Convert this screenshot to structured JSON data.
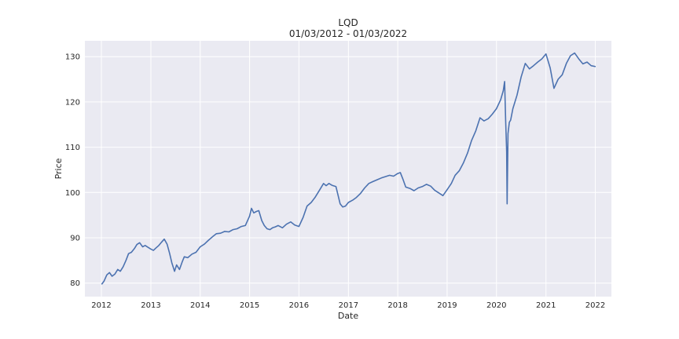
{
  "chart_data": {
    "type": "line",
    "title": "LQD",
    "subtitle": "01/03/2012 - 01/03/2022",
    "xlabel": "Date",
    "ylabel": "Price",
    "x_ticks": [
      "2012",
      "2013",
      "2014",
      "2015",
      "2016",
      "2017",
      "2018",
      "2019",
      "2020",
      "2021",
      "2022"
    ],
    "y_ticks": [
      80,
      90,
      100,
      110,
      120,
      130
    ],
    "xlim": [
      "2011-09-01",
      "2022-04-30"
    ],
    "ylim": [
      77.0,
      133.5
    ],
    "grid": true,
    "background": "#eaeaf2",
    "line_color": "#4c72b0",
    "series": [
      {
        "x": [
          "2012-01-03",
          "2012-01-20",
          "2012-02-10",
          "2012-03-01",
          "2012-03-20",
          "2012-04-10",
          "2012-05-01",
          "2012-05-20",
          "2012-06-10",
          "2012-07-01",
          "2012-07-20",
          "2012-08-10",
          "2012-09-01",
          "2012-09-20",
          "2012-10-10",
          "2012-11-01",
          "2012-11-20",
          "2012-12-10",
          "2013-01-01",
          "2013-01-20",
          "2013-02-10",
          "2013-03-01",
          "2013-03-20",
          "2013-04-10",
          "2013-05-01",
          "2013-05-20",
          "2013-06-05",
          "2013-06-25",
          "2013-07-10",
          "2013-08-01",
          "2013-08-20",
          "2013-09-05",
          "2013-10-01",
          "2013-11-01",
          "2013-12-01",
          "2014-01-01",
          "2014-02-01",
          "2014-03-01",
          "2014-04-01",
          "2014-05-01",
          "2014-06-01",
          "2014-07-01",
          "2014-08-01",
          "2014-09-01",
          "2014-10-01",
          "2014-11-01",
          "2014-12-01",
          "2015-01-01",
          "2015-01-15",
          "2015-02-01",
          "2015-02-20",
          "2015-03-10",
          "2015-04-01",
          "2015-04-20",
          "2015-05-10",
          "2015-06-01",
          "2015-06-20",
          "2015-07-10",
          "2015-08-01",
          "2015-09-01",
          "2015-10-01",
          "2015-11-01",
          "2015-12-01",
          "2016-01-01",
          "2016-02-01",
          "2016-03-01",
          "2016-04-01",
          "2016-05-01",
          "2016-06-01",
          "2016-07-01",
          "2016-07-20",
          "2016-08-10",
          "2016-09-01",
          "2016-10-01",
          "2016-11-01",
          "2016-11-20",
          "2016-12-10",
          "2017-01-01",
          "2017-02-01",
          "2017-03-01",
          "2017-04-01",
          "2017-05-01",
          "2017-06-01",
          "2017-07-01",
          "2017-08-01",
          "2017-09-01",
          "2017-10-01",
          "2017-11-01",
          "2017-12-01",
          "2018-01-01",
          "2018-01-20",
          "2018-02-10",
          "2018-03-01",
          "2018-04-01",
          "2018-05-01",
          "2018-06-01",
          "2018-07-01",
          "2018-08-01",
          "2018-09-01",
          "2018-10-01",
          "2018-11-01",
          "2018-12-01",
          "2019-01-01",
          "2019-02-01",
          "2019-03-01",
          "2019-04-01",
          "2019-05-01",
          "2019-06-01",
          "2019-07-01",
          "2019-08-01",
          "2019-09-01",
          "2019-10-01",
          "2019-11-01",
          "2019-12-01",
          "2020-01-01",
          "2020-02-01",
          "2020-02-20",
          "2020-03-01",
          "2020-03-09",
          "2020-03-16",
          "2020-03-20",
          "2020-03-26",
          "2020-04-05",
          "2020-04-15",
          "2020-05-01",
          "2020-06-01",
          "2020-07-01",
          "2020-08-01",
          "2020-09-01",
          "2020-10-01",
          "2020-11-01",
          "2020-12-01",
          "2021-01-01",
          "2021-02-01",
          "2021-03-01",
          "2021-04-01",
          "2021-05-01",
          "2021-06-01",
          "2021-07-01",
          "2021-08-01",
          "2021-09-01",
          "2021-10-01",
          "2021-11-01",
          "2021-12-01",
          "2022-01-03"
        ],
        "y": [
          79.7,
          80.4,
          81.8,
          82.3,
          81.5,
          82.0,
          83.0,
          82.6,
          83.6,
          85.0,
          86.5,
          86.8,
          87.6,
          88.5,
          88.9,
          88.0,
          88.3,
          87.9,
          87.5,
          87.2,
          87.8,
          88.3,
          89.0,
          89.7,
          88.6,
          86.5,
          84.5,
          82.6,
          84.0,
          83.0,
          84.6,
          85.8,
          85.6,
          86.4,
          86.8,
          88.0,
          88.6,
          89.4,
          90.2,
          90.9,
          91.0,
          91.4,
          91.3,
          91.8,
          92.0,
          92.5,
          92.7,
          94.8,
          96.5,
          95.5,
          95.8,
          96.0,
          93.8,
          92.7,
          92.0,
          91.8,
          92.2,
          92.4,
          92.7,
          92.2,
          93.0,
          93.5,
          92.8,
          92.5,
          94.5,
          97.0,
          97.8,
          99.0,
          100.5,
          102.0,
          101.5,
          102.0,
          101.6,
          101.3,
          97.5,
          96.8,
          97.0,
          97.8,
          98.3,
          98.9,
          99.8,
          101.0,
          102.0,
          102.4,
          102.8,
          103.2,
          103.5,
          103.8,
          103.6,
          104.2,
          104.4,
          102.8,
          101.2,
          100.9,
          100.4,
          101.0,
          101.3,
          101.8,
          101.4,
          100.5,
          99.9,
          99.3,
          100.6,
          102.0,
          103.8,
          104.8,
          106.5,
          108.7,
          111.5,
          113.6,
          116.5,
          115.8,
          116.3,
          117.3,
          118.5,
          120.5,
          122.5,
          124.5,
          116.0,
          109.0,
          97.5,
          113.0,
          115.5,
          116.0,
          118.5,
          121.5,
          125.5,
          128.5,
          127.3,
          128.0,
          128.8,
          129.5,
          130.6,
          127.5,
          123.0,
          125.0,
          126.0,
          128.5,
          130.2,
          130.8,
          129.5,
          128.4,
          128.8,
          128.0,
          127.8
        ]
      }
    ]
  }
}
